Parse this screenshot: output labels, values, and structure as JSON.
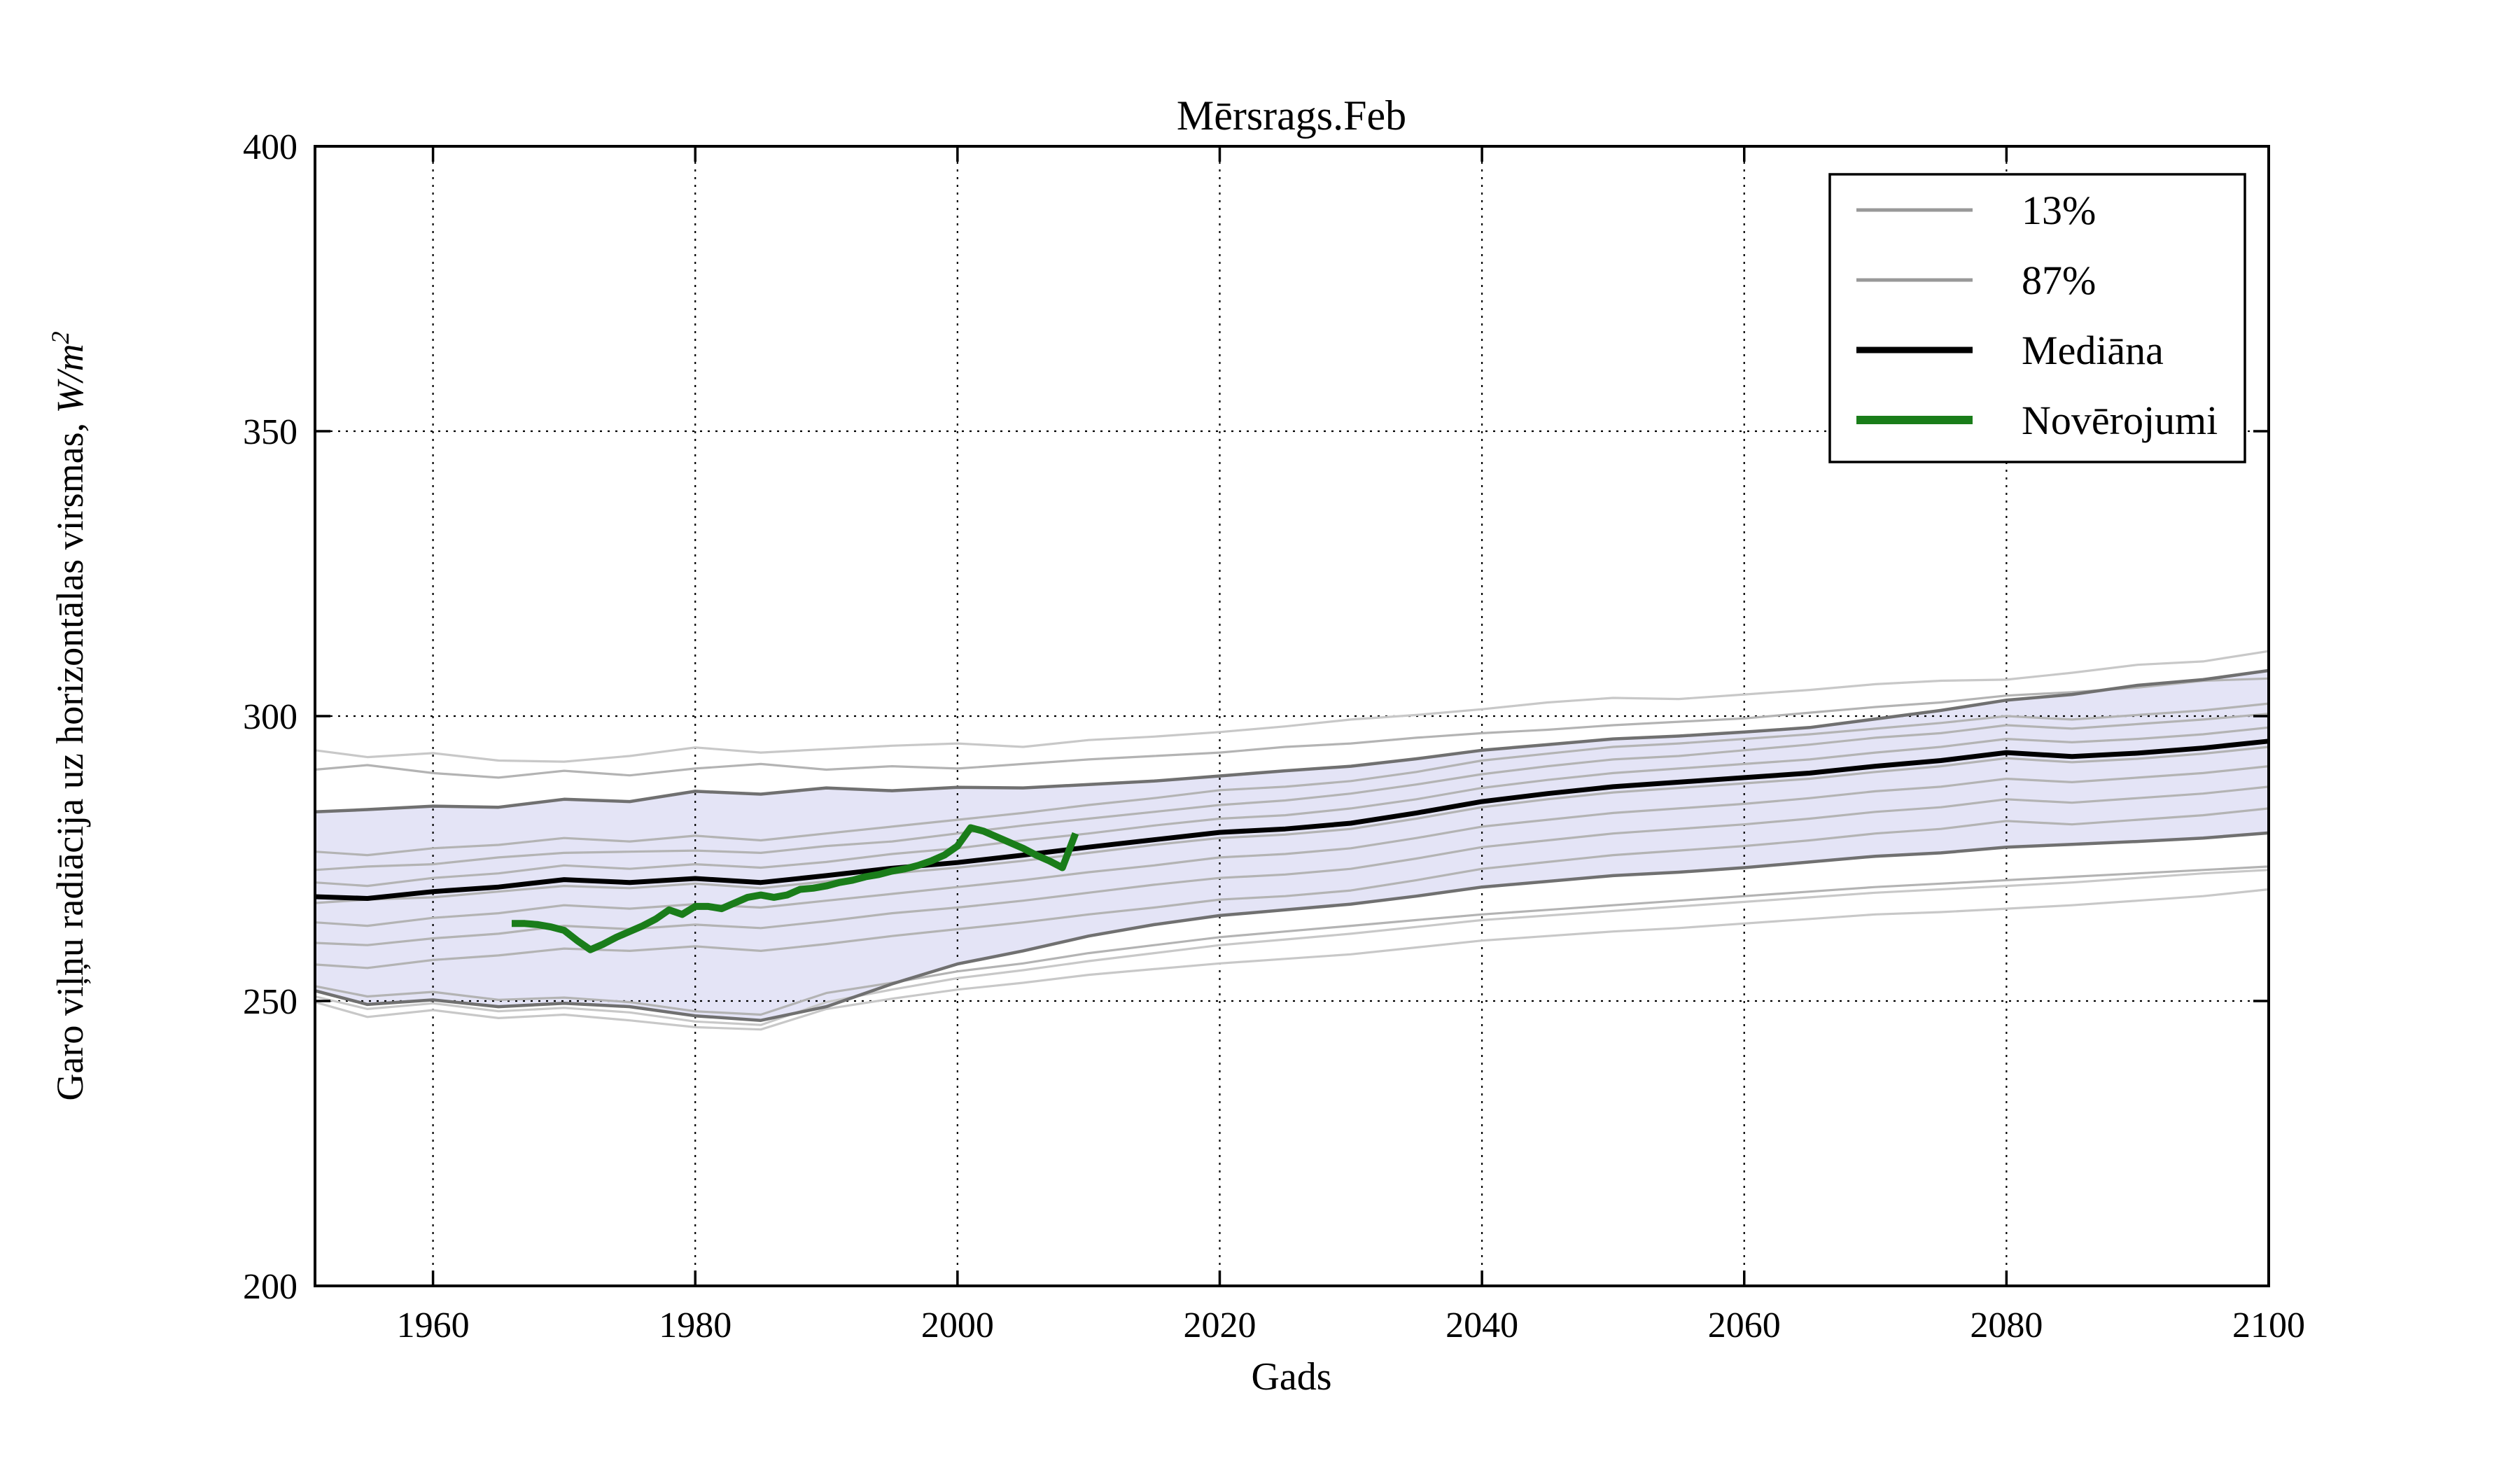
{
  "title": "Mērsrags.Feb",
  "xlabel": "Gads",
  "ylabel": {
    "text": "Garo viļņu radiācija uz horizontālas virsmas, ",
    "math": "W/m",
    "sup": "2"
  },
  "legend": {
    "items": [
      {
        "label": "13%",
        "color": "#999999",
        "swatch_width": 5
      },
      {
        "label": "87%",
        "color": "#999999",
        "swatch_width": 5
      },
      {
        "label": "Mediāna",
        "color": "#000000",
        "swatch_width": 9
      },
      {
        "label": "Novērojumi",
        "color": "#1a7d1a",
        "swatch_width": 12
      }
    ]
  },
  "axes": {
    "xlim": [
      1951,
      2100
    ],
    "ylim": [
      200,
      400
    ],
    "xticks": [
      1960,
      1980,
      2000,
      2020,
      2040,
      2060,
      2080,
      2100
    ],
    "yticks": [
      200,
      250,
      300,
      350,
      400
    ],
    "grid": "dotted"
  },
  "colors": {
    "band_fill": "#e4e4f6",
    "band_edge": "#707070",
    "ensemble": "#b3b3b3",
    "ensemble_outer": "#c8c8c8",
    "median": "#000000",
    "observations": "#1a7d1a",
    "grid": "#000000"
  },
  "chart_data": {
    "type": "line",
    "title": "Mērsrags.Feb",
    "xlabel": "Gads",
    "ylabel": "Garo viļņu radiācija uz horizontālas virsmas, W/m^2",
    "xlim": [
      1951,
      2100
    ],
    "ylim": [
      200,
      400
    ],
    "legend_position": "upper right",
    "grid": true,
    "years": [
      1951,
      1955,
      1960,
      1965,
      1970,
      1975,
      1980,
      1985,
      1990,
      1995,
      2000,
      2005,
      2010,
      2015,
      2020,
      2025,
      2030,
      2035,
      2040,
      2045,
      2050,
      2055,
      2060,
      2065,
      2070,
      2075,
      2080,
      2085,
      2090,
      2095,
      2100
    ],
    "band": {
      "lower": "13%",
      "upper": "87%",
      "fill": "#e4e4f6"
    },
    "series": [
      {
        "name": "ensemble-above-1",
        "role": "ensemble",
        "color": "#c8c8c8",
        "width": 3.2,
        "values": [
          294.0,
          292.8,
          293.5,
          292.2,
          292.0,
          293.0,
          294.5,
          293.6,
          294.2,
          294.8,
          295.2,
          294.6,
          295.8,
          296.4,
          297.2,
          298.2,
          299.4,
          300.2,
          301.2,
          302.4,
          303.2,
          303.0,
          303.8,
          304.6,
          305.6,
          306.2,
          306.4,
          307.6,
          309.0,
          309.6,
          311.4
        ]
      },
      {
        "name": "ensemble-above-2",
        "role": "ensemble",
        "color": "#b3b3b3",
        "width": 3.2,
        "values": [
          290.6,
          291.4,
          290.0,
          289.2,
          290.4,
          289.6,
          290.8,
          291.6,
          290.6,
          291.2,
          290.8,
          291.6,
          292.4,
          293.0,
          293.6,
          294.6,
          295.2,
          296.2,
          297.0,
          297.6,
          298.4,
          299.0,
          299.6,
          300.6,
          301.6,
          302.4,
          303.6,
          304.2,
          305.0,
          306.2,
          306.6
        ]
      },
      {
        "name": "ensemble-inside-1",
        "role": "ensemble",
        "color": "#b3b3b3",
        "width": 3.2,
        "values": [
          276.2,
          275.6,
          276.8,
          277.4,
          278.6,
          278.0,
          279.0,
          278.2,
          279.4,
          280.6,
          281.8,
          283.0,
          284.4,
          285.6,
          287.0,
          287.6,
          288.6,
          290.2,
          292.2,
          293.4,
          294.6,
          295.2,
          296.0,
          296.8,
          297.8,
          298.8,
          300.0,
          299.4,
          300.2,
          301.0,
          302.2
        ]
      },
      {
        "name": "ensemble-inside-2",
        "role": "ensemble",
        "color": "#b3b3b3",
        "width": 3.2,
        "values": [
          273.0,
          273.6,
          274.0,
          275.2,
          276.0,
          276.2,
          276.4,
          276.0,
          277.2,
          278.0,
          279.4,
          280.8,
          282.0,
          283.2,
          284.4,
          285.2,
          286.4,
          288.0,
          289.8,
          291.2,
          292.4,
          293.0,
          294.0,
          295.0,
          296.2,
          297.0,
          298.4,
          297.8,
          298.6,
          299.4,
          300.4
        ]
      },
      {
        "name": "ensemble-inside-3",
        "role": "ensemble",
        "color": "#b3b3b3",
        "width": 3.2,
        "values": [
          270.8,
          270.2,
          271.6,
          272.4,
          273.8,
          273.2,
          274.0,
          273.4,
          274.4,
          275.8,
          276.8,
          278.2,
          279.4,
          280.8,
          282.0,
          282.6,
          283.8,
          285.4,
          287.4,
          288.8,
          290.0,
          290.8,
          291.6,
          292.4,
          293.6,
          294.6,
          296.0,
          295.4,
          296.0,
          296.8,
          298.0
        ]
      },
      {
        "name": "ensemble-inside-4",
        "role": "ensemble",
        "color": "#b3b3b3",
        "width": 3.2,
        "values": [
          267.2,
          267.8,
          268.2,
          269.2,
          270.2,
          269.8,
          270.6,
          269.8,
          271.0,
          272.4,
          273.4,
          274.6,
          276.0,
          277.4,
          278.6,
          279.2,
          280.2,
          282.0,
          284.0,
          285.4,
          286.6,
          287.4,
          288.2,
          289.0,
          290.2,
          291.2,
          292.6,
          291.9,
          292.5,
          293.4,
          294.6
        ]
      },
      {
        "name": "ensemble-inside-5",
        "role": "ensemble",
        "color": "#b3b3b3",
        "width": 3.2,
        "values": [
          263.8,
          263.2,
          264.6,
          265.4,
          266.8,
          266.2,
          267.0,
          266.4,
          267.6,
          268.8,
          270.0,
          271.2,
          272.6,
          273.8,
          275.2,
          275.8,
          276.8,
          278.6,
          280.6,
          281.8,
          283.0,
          283.8,
          284.6,
          285.6,
          286.8,
          287.6,
          289.0,
          288.4,
          289.2,
          290.0,
          291.2
        ]
      },
      {
        "name": "ensemble-inside-6",
        "role": "ensemble",
        "color": "#b3b3b3",
        "width": 3.2,
        "values": [
          260.2,
          259.8,
          261.0,
          261.8,
          263.2,
          262.6,
          263.4,
          262.8,
          264.0,
          265.4,
          266.4,
          267.6,
          269.0,
          270.4,
          271.6,
          272.2,
          273.2,
          275.0,
          277.0,
          278.2,
          279.4,
          280.2,
          281.0,
          282.0,
          283.2,
          284.0,
          285.4,
          284.8,
          285.6,
          286.4,
          287.6
        ]
      },
      {
        "name": "ensemble-inside-7",
        "role": "ensemble",
        "color": "#b3b3b3",
        "width": 3.2,
        "values": [
          256.4,
          255.8,
          257.2,
          258.0,
          259.2,
          258.8,
          259.6,
          258.8,
          260.0,
          261.4,
          262.6,
          263.8,
          265.2,
          266.4,
          267.8,
          268.4,
          269.4,
          271.2,
          273.2,
          274.4,
          275.6,
          276.4,
          277.2,
          278.2,
          279.4,
          280.2,
          281.6,
          281.0,
          281.8,
          282.6,
          283.8
        ]
      },
      {
        "name": "ensemble-below-1",
        "role": "ensemble",
        "color": "#c8c8c8",
        "width": 3.2,
        "values": [
          249.8,
          247.2,
          248.4,
          247.0,
          247.6,
          246.6,
          245.4,
          245.0,
          248.6,
          250.4,
          252.0,
          253.2,
          254.6,
          255.6,
          256.6,
          257.4,
          258.2,
          259.4,
          260.6,
          261.4,
          262.2,
          262.8,
          263.6,
          264.4,
          265.2,
          265.6,
          266.2,
          266.8,
          267.6,
          268.4,
          269.6
        ]
      },
      {
        "name": "ensemble-below-2",
        "role": "ensemble",
        "color": "#b3b3b3",
        "width": 3.2,
        "values": [
          252.6,
          250.8,
          251.6,
          250.2,
          250.6,
          249.8,
          248.2,
          247.6,
          251.4,
          253.2,
          255.2,
          256.6,
          258.4,
          259.8,
          261.2,
          262.2,
          263.2,
          264.2,
          265.2,
          266.0,
          266.8,
          267.6,
          268.4,
          269.2,
          270.0,
          270.6,
          271.2,
          271.8,
          272.4,
          273.0,
          273.6
        ]
      },
      {
        "name": "ensemble-below-3",
        "role": "ensemble",
        "color": "#c8c8c8",
        "width": 3.2,
        "values": [
          250.8,
          248.6,
          249.6,
          248.2,
          248.8,
          248.0,
          246.4,
          245.8,
          249.8,
          252.0,
          254.0,
          255.4,
          257.0,
          258.4,
          259.8,
          260.8,
          261.8,
          263.0,
          264.2,
          265.0,
          265.8,
          266.6,
          267.4,
          268.2,
          269.0,
          269.6,
          270.2,
          270.8,
          271.6,
          272.4,
          273.0
        ]
      },
      {
        "name": "13%",
        "role": "percentile-lower",
        "color": "#707070",
        "width": 4.5,
        "values": [
          251.8,
          249.4,
          250.2,
          249.0,
          249.6,
          249.0,
          247.4,
          246.6,
          249.0,
          253.0,
          256.5,
          258.8,
          261.4,
          263.4,
          265.0,
          266.0,
          267.0,
          268.4,
          270.0,
          271.0,
          272.0,
          272.6,
          273.4,
          274.4,
          275.4,
          276.0,
          277.0,
          277.5,
          278.0,
          278.6,
          279.5
        ]
      },
      {
        "name": "87%",
        "role": "percentile-upper",
        "color": "#707070",
        "width": 4.5,
        "values": [
          283.2,
          283.6,
          284.2,
          284.0,
          285.4,
          285.0,
          286.8,
          286.3,
          287.4,
          286.9,
          287.5,
          287.4,
          288.0,
          288.6,
          289.5,
          290.4,
          291.2,
          292.5,
          294.0,
          295.0,
          296.0,
          296.5,
          297.2,
          298.0,
          299.5,
          301.0,
          302.8,
          303.8,
          305.4,
          306.4,
          308.0
        ]
      },
      {
        "name": "Mediāna",
        "role": "median",
        "color": "#000000",
        "width": 7,
        "values": [
          268.3,
          268.0,
          269.2,
          270.0,
          271.3,
          270.8,
          271.5,
          270.8,
          272.0,
          273.3,
          274.3,
          275.6,
          277.0,
          278.3,
          279.6,
          280.2,
          281.2,
          283.0,
          285.0,
          286.4,
          287.6,
          288.4,
          289.2,
          290.0,
          291.2,
          292.2,
          293.6,
          292.9,
          293.5,
          294.4,
          295.6
        ]
      },
      {
        "name": "Novērojumi",
        "role": "observations",
        "color": "#1a7d1a",
        "width": 10,
        "points": [
          [
            1966,
            263.6
          ],
          [
            1967,
            263.6
          ],
          [
            1968,
            263.4
          ],
          [
            1969,
            263.0
          ],
          [
            1970,
            262.4
          ],
          [
            1971,
            260.6
          ],
          [
            1972,
            259.0
          ],
          [
            1973,
            260.0
          ],
          [
            1974,
            261.2
          ],
          [
            1975,
            262.2
          ],
          [
            1976,
            263.2
          ],
          [
            1977,
            264.4
          ],
          [
            1978,
            266.0
          ],
          [
            1979,
            265.2
          ],
          [
            1980,
            266.6
          ],
          [
            1981,
            266.6
          ],
          [
            1982,
            266.2
          ],
          [
            1983,
            267.2
          ],
          [
            1984,
            268.2
          ],
          [
            1985,
            268.6
          ],
          [
            1986,
            268.2
          ],
          [
            1987,
            268.6
          ],
          [
            1988,
            269.6
          ],
          [
            1989,
            269.8
          ],
          [
            1990,
            270.2
          ],
          [
            1991,
            270.8
          ],
          [
            1992,
            271.2
          ],
          [
            1993,
            271.8
          ],
          [
            1994,
            272.2
          ],
          [
            1995,
            272.8
          ],
          [
            1996,
            273.2
          ],
          [
            1997,
            273.8
          ],
          [
            1998,
            274.6
          ],
          [
            1999,
            275.6
          ],
          [
            2000,
            277.2
          ],
          [
            2001,
            280.4
          ],
          [
            2002,
            279.8
          ],
          [
            2003,
            278.8
          ],
          [
            2004,
            277.8
          ],
          [
            2005,
            276.8
          ],
          [
            2006,
            275.6
          ],
          [
            2007,
            274.6
          ],
          [
            2008,
            273.4
          ],
          [
            2009,
            279.4
          ]
        ]
      }
    ]
  }
}
